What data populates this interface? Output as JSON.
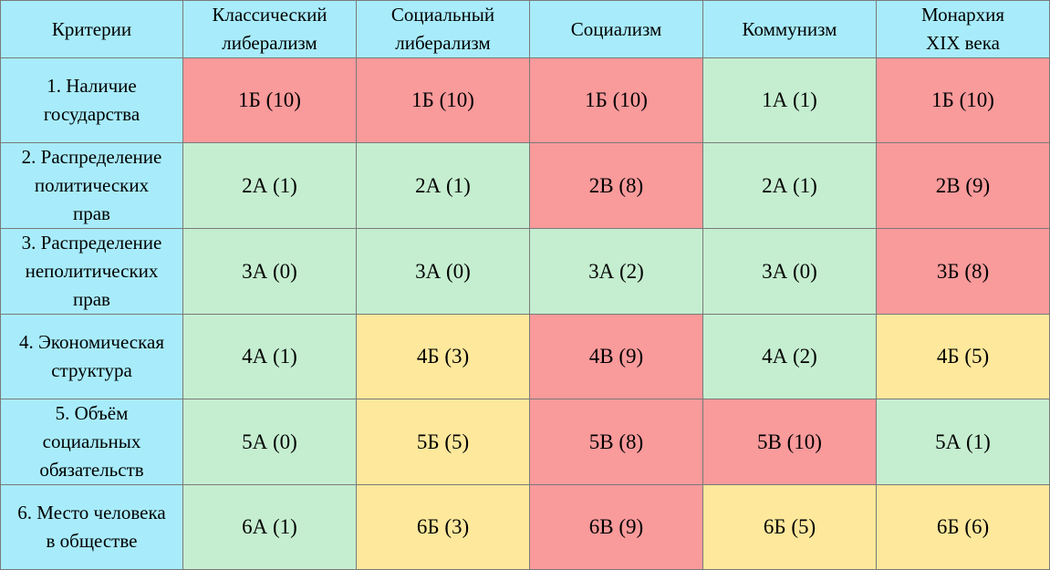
{
  "chart_data": {
    "type": "table",
    "columns": [
      "Критерии",
      "Классический\nлиберализм",
      "Социальный\nлиберализм",
      "Социализм",
      "Коммунизм",
      "Монархия\nXIX века"
    ],
    "rows": [
      {
        "criterion": "1. Наличие\nгосударства",
        "cells": [
          {
            "text": "1Б (10)",
            "color": "#f99a9b"
          },
          {
            "text": "1Б (10)",
            "color": "#f99a9b"
          },
          {
            "text": "1Б (10)",
            "color": "#f99a9b"
          },
          {
            "text": "1А (1)",
            "color": "#c5eed0"
          },
          {
            "text": "1Б (10)",
            "color": "#f99a9b"
          }
        ]
      },
      {
        "criterion": "2. Распределение\nполитических\nправ",
        "cells": [
          {
            "text": "2А (1)",
            "color": "#c5eed0"
          },
          {
            "text": "2А (1)",
            "color": "#c5eed0"
          },
          {
            "text": "2В (8)",
            "color": "#f99a9b"
          },
          {
            "text": "2А (1)",
            "color": "#c5eed0"
          },
          {
            "text": "2В (9)",
            "color": "#f99a9b"
          }
        ]
      },
      {
        "criterion": "3. Распределение\nнеполитических\nправ",
        "cells": [
          {
            "text": "3А (0)",
            "color": "#c5eed0"
          },
          {
            "text": "3А (0)",
            "color": "#c5eed0"
          },
          {
            "text": "3А (2)",
            "color": "#c5eed0"
          },
          {
            "text": "3А (0)",
            "color": "#c5eed0"
          },
          {
            "text": "3Б (8)",
            "color": "#f99a9b"
          }
        ]
      },
      {
        "criterion": "4. Экономическая\nструктура",
        "cells": [
          {
            "text": "4А (1)",
            "color": "#c5eed0"
          },
          {
            "text": "4Б (3)",
            "color": "#fde89c"
          },
          {
            "text": "4В (9)",
            "color": "#f99a9b"
          },
          {
            "text": "4А (2)",
            "color": "#c5eed0"
          },
          {
            "text": "4Б (5)",
            "color": "#fde89c"
          }
        ]
      },
      {
        "criterion": "5. Объём\nсоциальных\nобязательств",
        "cells": [
          {
            "text": "5А (0)",
            "color": "#c5eed0"
          },
          {
            "text": "5Б (5)",
            "color": "#fde89c"
          },
          {
            "text": "5В (8)",
            "color": "#f99a9b"
          },
          {
            "text": "5В (10)",
            "color": "#f99a9b"
          },
          {
            "text": "5А (1)",
            "color": "#c5eed0"
          }
        ]
      },
      {
        "criterion": "6. Место человека\nв обществе",
        "cells": [
          {
            "text": "6А (1)",
            "color": "#c5eed0"
          },
          {
            "text": "6Б (3)",
            "color": "#fde89c"
          },
          {
            "text": "6В (9)",
            "color": "#f99a9b"
          },
          {
            "text": "6Б (5)",
            "color": "#fde89c"
          },
          {
            "text": "6Б (6)",
            "color": "#fde89c"
          }
        ]
      }
    ]
  }
}
